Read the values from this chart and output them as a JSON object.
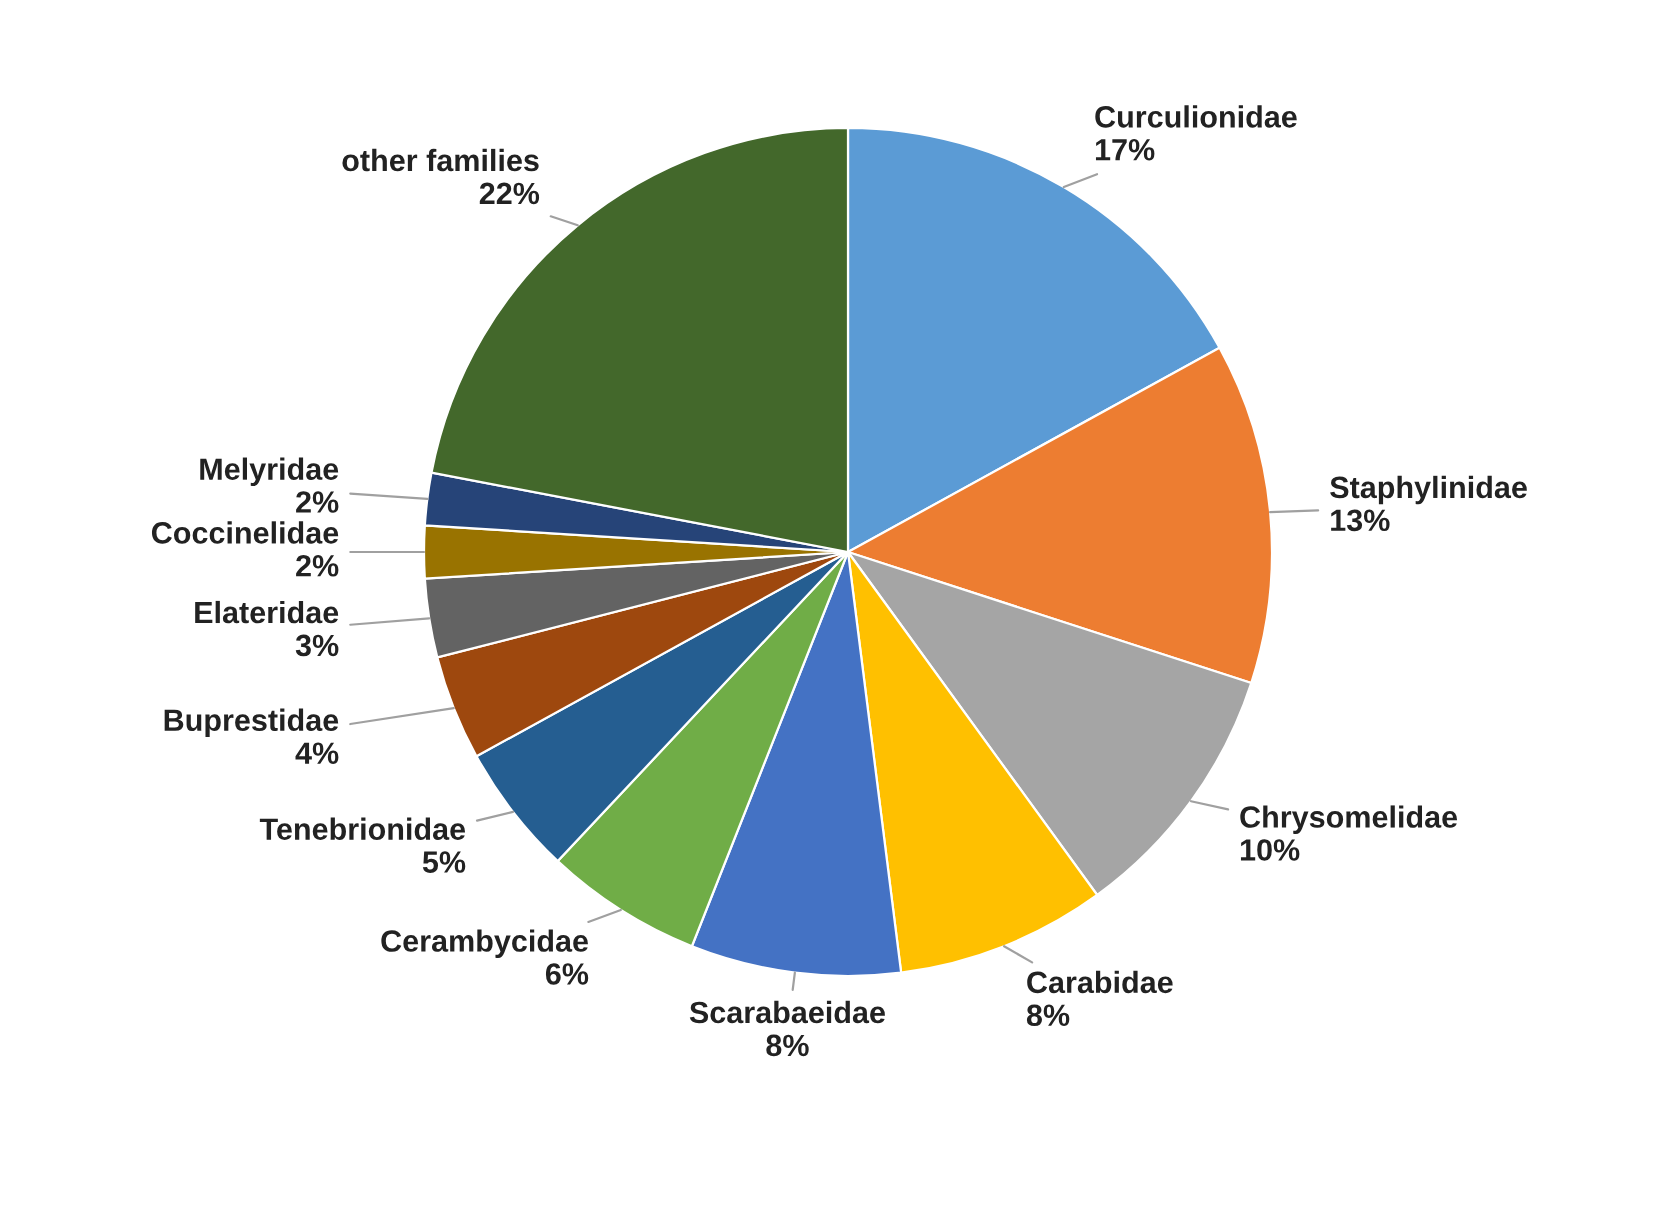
{
  "chart_data": {
    "type": "pie",
    "categories": [
      "Curculionidae",
      "Staphylinidae",
      "Chrysomelidae",
      "Carabidae",
      "Scarabaeidae",
      "Cerambycidae",
      "Tenebrionidae",
      "Buprestidae",
      "Elateridae",
      "Coccinelidae",
      "Melyridae",
      "other families"
    ],
    "values": [
      17,
      13,
      10,
      8,
      8,
      6,
      5,
      4,
      3,
      2,
      2,
      22
    ],
    "value_labels": [
      "17%",
      "13%",
      "10%",
      "8%",
      "8%",
      "6%",
      "5%",
      "4%",
      "3%",
      "2%",
      "2%",
      "22%"
    ],
    "colors": [
      "#5b9bd5",
      "#ed7d31",
      "#a5a5a5",
      "#ffc000",
      "#4472c4",
      "#70ad47",
      "#255e91",
      "#9e480e",
      "#636363",
      "#997300",
      "#264478",
      "#43682b"
    ],
    "legend": false
  }
}
